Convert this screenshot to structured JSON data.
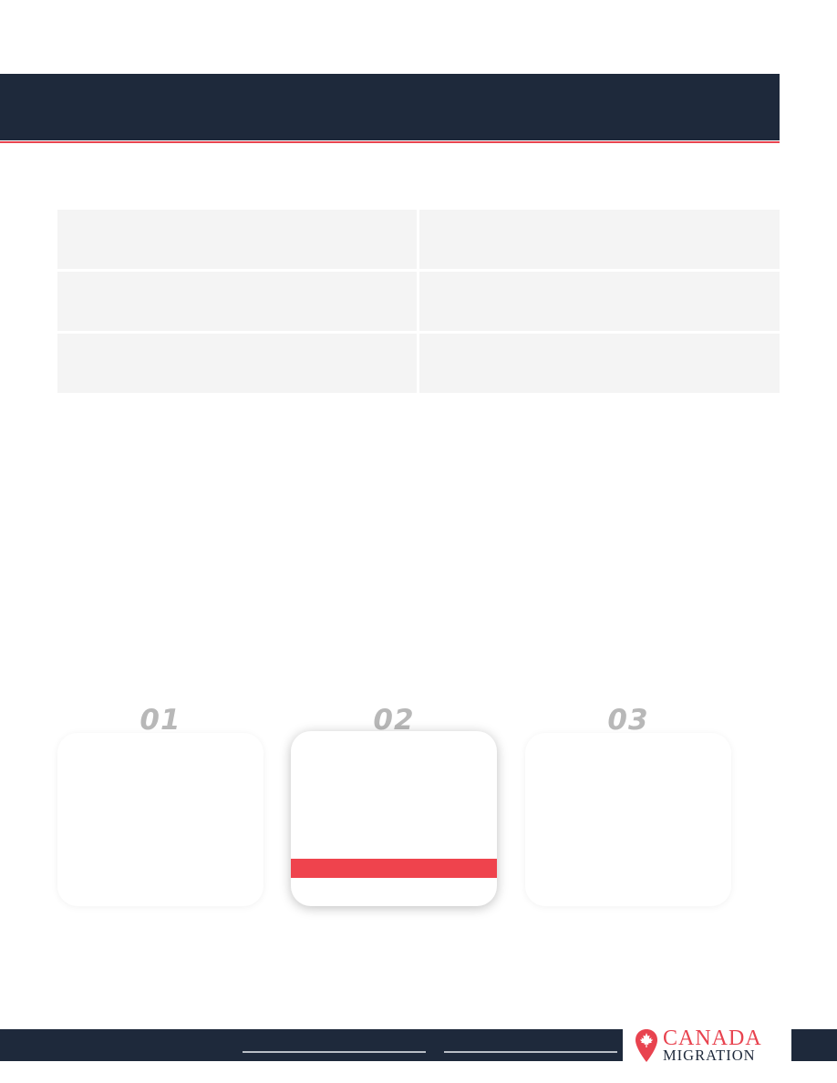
{
  "steps": [
    {
      "number": "01"
    },
    {
      "number": "02"
    },
    {
      "number": "03"
    }
  ],
  "logo": {
    "line1": "CANADA",
    "line2": "MIGRATION",
    "brand_red": "#e8434f",
    "brand_navy": "#1e293b",
    "icon": "maple-leaf-pin-icon"
  }
}
